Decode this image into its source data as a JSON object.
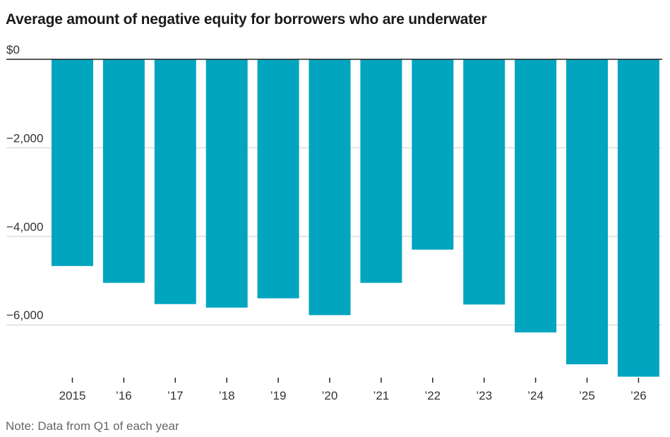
{
  "chart_data": {
    "type": "bar",
    "title": "Average amount of negative equity for borrowers who are underwater",
    "note": "Note: Data from Q1 of each year",
    "xlabel": "",
    "ylabel": "",
    "categories": [
      "2015",
      "’16",
      "’17",
      "’18",
      "’19",
      "’20",
      "’21",
      "’22",
      "’23",
      "’24",
      "’25",
      "’26"
    ],
    "values": [
      -4670,
      -5050,
      -5530,
      -5610,
      -5400,
      -5780,
      -5050,
      -4300,
      -5540,
      -6170,
      -6890,
      -7170
    ],
    "ylim": [
      -7300,
      0
    ],
    "yticks": [
      0,
      -2000,
      -4000,
      -6000
    ],
    "ytick_labels": [
      "$0",
      "−2,000",
      "−4,000",
      "−6,000"
    ],
    "grid": true,
    "bar_color": "#02a5c0"
  }
}
